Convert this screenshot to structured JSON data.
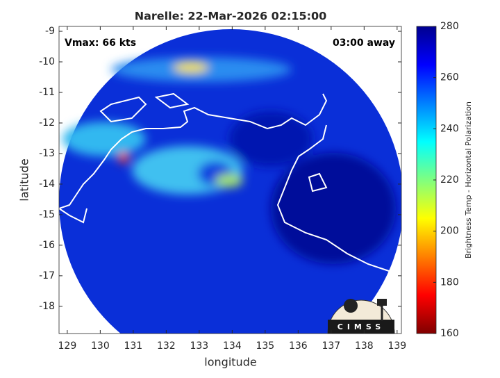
{
  "chart_data": {
    "type": "heatmap",
    "title": "Narelle: 22-Mar-2026 02:15:00",
    "xlabel": "longitude",
    "ylabel": "latitude",
    "annotations": [
      "Vmax: 66 kts",
      "03:00 away"
    ],
    "logo_text": "CIMSS",
    "xlim": [
      128.75,
      139.13
    ],
    "xticks": [
      129,
      130,
      131,
      132,
      133,
      134,
      135,
      136,
      137,
      138,
      139
    ],
    "ylim": [
      -18.89,
      -8.84
    ],
    "yticks": [
      -9,
      -10,
      -11,
      -12,
      -13,
      -14,
      -15,
      -16,
      -17,
      -18
    ],
    "colorbar": {
      "label": "Brightness Temp - Horizontal Polarization",
      "lim": [
        160,
        280
      ],
      "ticks": [
        160,
        180,
        200,
        220,
        240,
        260,
        280
      ]
    }
  }
}
